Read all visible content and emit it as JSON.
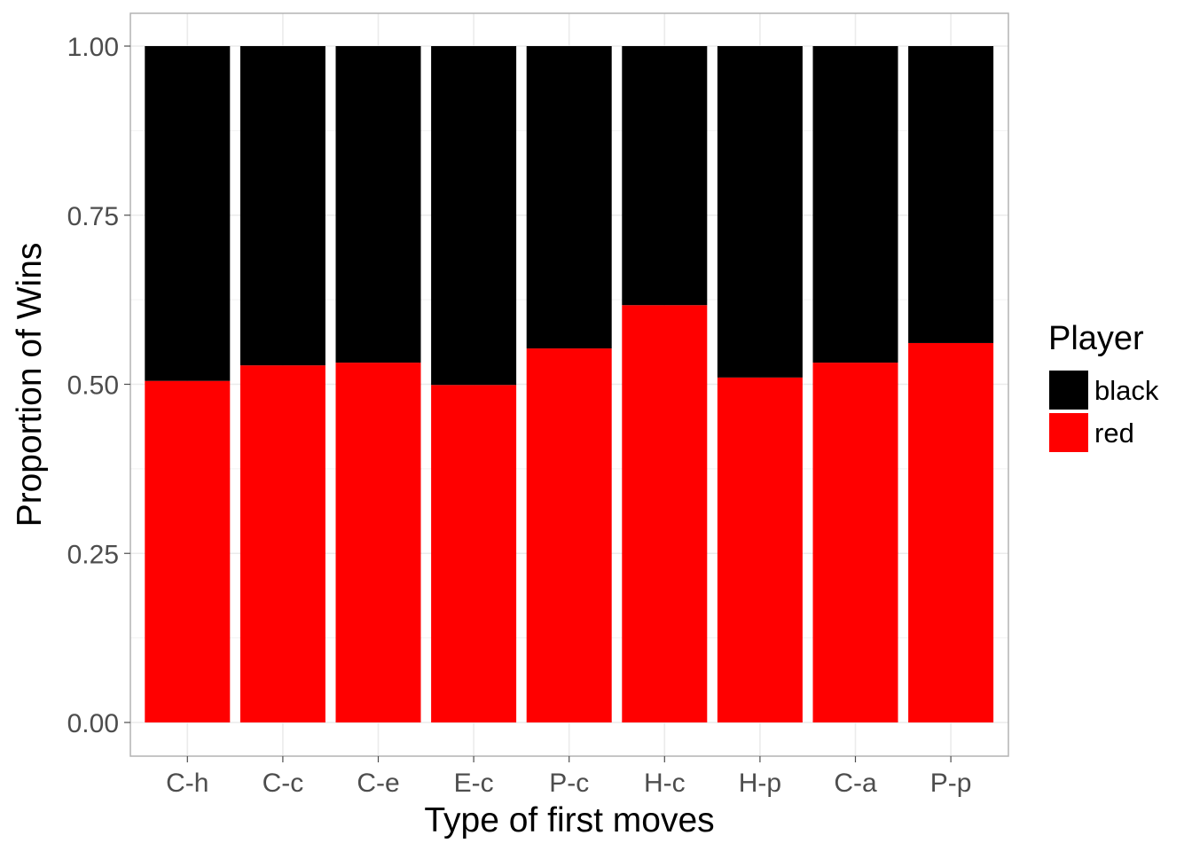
{
  "chart_data": {
    "type": "bar",
    "stacked": true,
    "normalized": true,
    "title": "",
    "xlabel": "Type of first moves",
    "ylabel": "Proportion of Wins",
    "categories": [
      "C-h",
      "C-c",
      "C-e",
      "E-c",
      "P-c",
      "H-c",
      "H-p",
      "C-a",
      "P-p"
    ],
    "series": [
      {
        "name": "red",
        "color": "#ff0000",
        "values": [
          0.505,
          0.528,
          0.532,
          0.499,
          0.553,
          0.617,
          0.51,
          0.532,
          0.561
        ]
      },
      {
        "name": "black",
        "color": "#000000",
        "values": [
          0.495,
          0.472,
          0.468,
          0.501,
          0.447,
          0.383,
          0.49,
          0.468,
          0.439
        ]
      }
    ],
    "ylim": [
      0,
      1
    ],
    "yticks": [
      "0.00",
      "0.25",
      "0.50",
      "0.75",
      "1.00"
    ],
    "grid": true,
    "legend": {
      "title": "Player",
      "position": "right",
      "entries": [
        {
          "label": "black",
          "color": "#000000"
        },
        {
          "label": "red",
          "color": "#ff0000"
        }
      ]
    }
  }
}
